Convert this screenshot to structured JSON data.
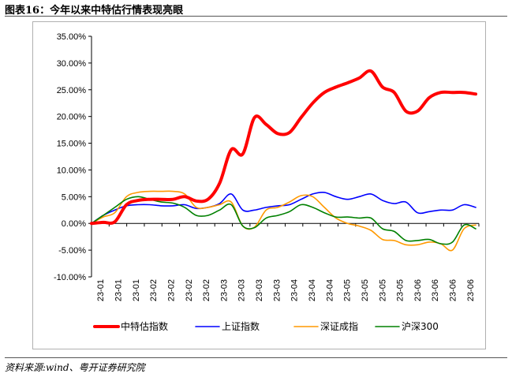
{
  "header": {
    "title": "图表16：今年以来中特估行情表现亮眼"
  },
  "footer": {
    "source": "资料来源:wind、粤开证券研究院"
  },
  "chart_data": {
    "type": "line",
    "title": "",
    "xlabel": "",
    "ylabel": "",
    "ylim": [
      -10,
      35
    ],
    "y_ticks": [
      "35.00%",
      "30.00%",
      "25.00%",
      "20.00%",
      "15.00%",
      "10.00%",
      "5.00%",
      "0.00%",
      "-5.00%",
      "-10.00%"
    ],
    "y_tick_values": [
      35,
      30,
      25,
      20,
      15,
      10,
      5,
      0,
      -5,
      -10
    ],
    "x_tick_labels": [
      "23-01",
      "23-01",
      "23-01",
      "23-02",
      "23-02",
      "23-02",
      "23-02",
      "23-03",
      "23-03",
      "23-03",
      "23-03",
      "23-04",
      "23-04",
      "23-04",
      "23-05",
      "23-05",
      "23-05",
      "23-05",
      "23-06",
      "23-06",
      "23-06",
      "23-06"
    ],
    "grid": false,
    "legend_position": "bottom",
    "series": [
      {
        "name": "中特估指数",
        "color": "#ff0000",
        "width": 4,
        "values": [
          0,
          0.2,
          0.3,
          3.5,
          4.3,
          4.5,
          4.5,
          4.5,
          5,
          4.2,
          4.5,
          7.5,
          13.8,
          13,
          19.8,
          18.5,
          16.8,
          17,
          19.8,
          22.5,
          24.5,
          25.5,
          26.3,
          27.2,
          28.5,
          25.5,
          24.5,
          21,
          21,
          23.5,
          24.5,
          24.5,
          24.5,
          24.2
        ]
      },
      {
        "name": "上证指数",
        "color": "#0000ff",
        "width": 1.6,
        "values": [
          0,
          1.5,
          2.5,
          3.3,
          3.5,
          3.5,
          3.3,
          3.3,
          3.5,
          2.8,
          3,
          3.7,
          5.5,
          2.5,
          2.5,
          3,
          3.3,
          3.5,
          4.5,
          5.5,
          5.8,
          5,
          4.5,
          5,
          5.5,
          4.3,
          3.7,
          4,
          2,
          2.2,
          2.5,
          2.5,
          3.5,
          3
        ]
      },
      {
        "name": "深证成指",
        "color": "#ff9900",
        "width": 1.6,
        "values": [
          0,
          1.2,
          2,
          5,
          5.8,
          6,
          6,
          6,
          5.5,
          3,
          3,
          3.5,
          4,
          -0.5,
          -0.7,
          2.5,
          3,
          4,
          5.2,
          5,
          3,
          1,
          0,
          -0.5,
          -1.3,
          -3,
          -3.2,
          -4,
          -4,
          -3.5,
          -3.8,
          -5,
          -1,
          -0.3
        ]
      },
      {
        "name": "沪深300",
        "color": "#008000",
        "width": 1.6,
        "values": [
          0,
          1.5,
          3,
          4.5,
          5,
          4.5,
          4,
          3.8,
          3,
          1.5,
          1.5,
          2.5,
          3.5,
          -0.5,
          -0.8,
          1,
          1.5,
          2.2,
          3.5,
          3,
          2,
          1.2,
          1.2,
          1,
          1,
          -1,
          -1.5,
          -3.2,
          -3.2,
          -3,
          -3.8,
          -3.5,
          -0.3,
          -1
        ]
      }
    ]
  }
}
